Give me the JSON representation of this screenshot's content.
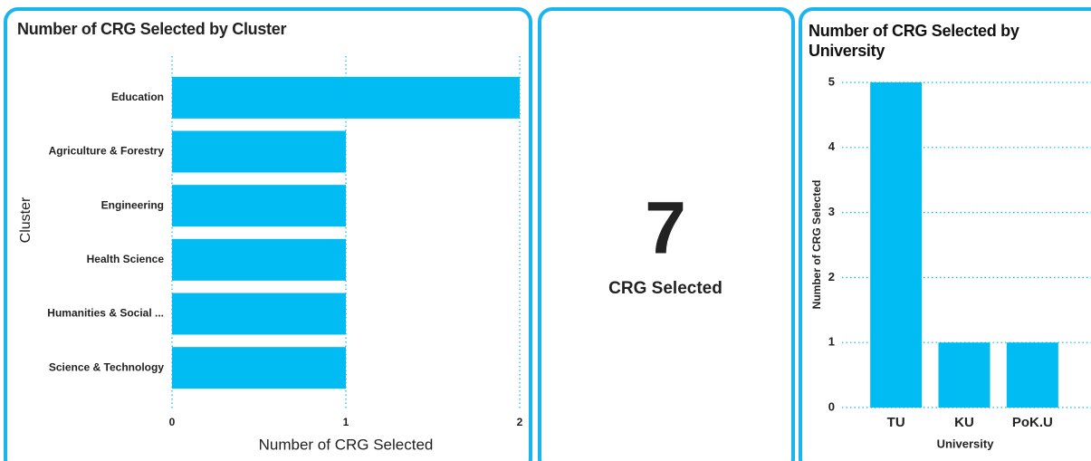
{
  "chart_data": [
    {
      "type": "bar",
      "orientation": "horizontal",
      "title": "Number of CRG Selected by Cluster",
      "categories": [
        "Education",
        "Agriculture & Forestry",
        "Engineering",
        "Health Science",
        "Humanities & Social ...",
        "Science & Technology"
      ],
      "values": [
        2,
        1,
        1,
        1,
        1,
        1
      ],
      "color": "#00bcf2",
      "xlabel": "Number of CRG Selected",
      "ylabel": "Cluster",
      "xlim": [
        0,
        2
      ],
      "xticks": [
        0,
        1,
        2
      ],
      "grid": true
    },
    {
      "type": "card",
      "value": 7,
      "label": "CRG Selected"
    },
    {
      "type": "bar",
      "orientation": "vertical",
      "title": "Number of CRG Selected by University",
      "categories": [
        "TU",
        "KU",
        "PoK.U"
      ],
      "values": [
        5,
        1,
        1
      ],
      "color": "#00bcf2",
      "xlabel": "University",
      "ylabel": "Number of CRG Selected",
      "ylim": [
        0,
        5
      ],
      "yticks": [
        0,
        1,
        2,
        3,
        4,
        5
      ],
      "grid": true
    }
  ]
}
